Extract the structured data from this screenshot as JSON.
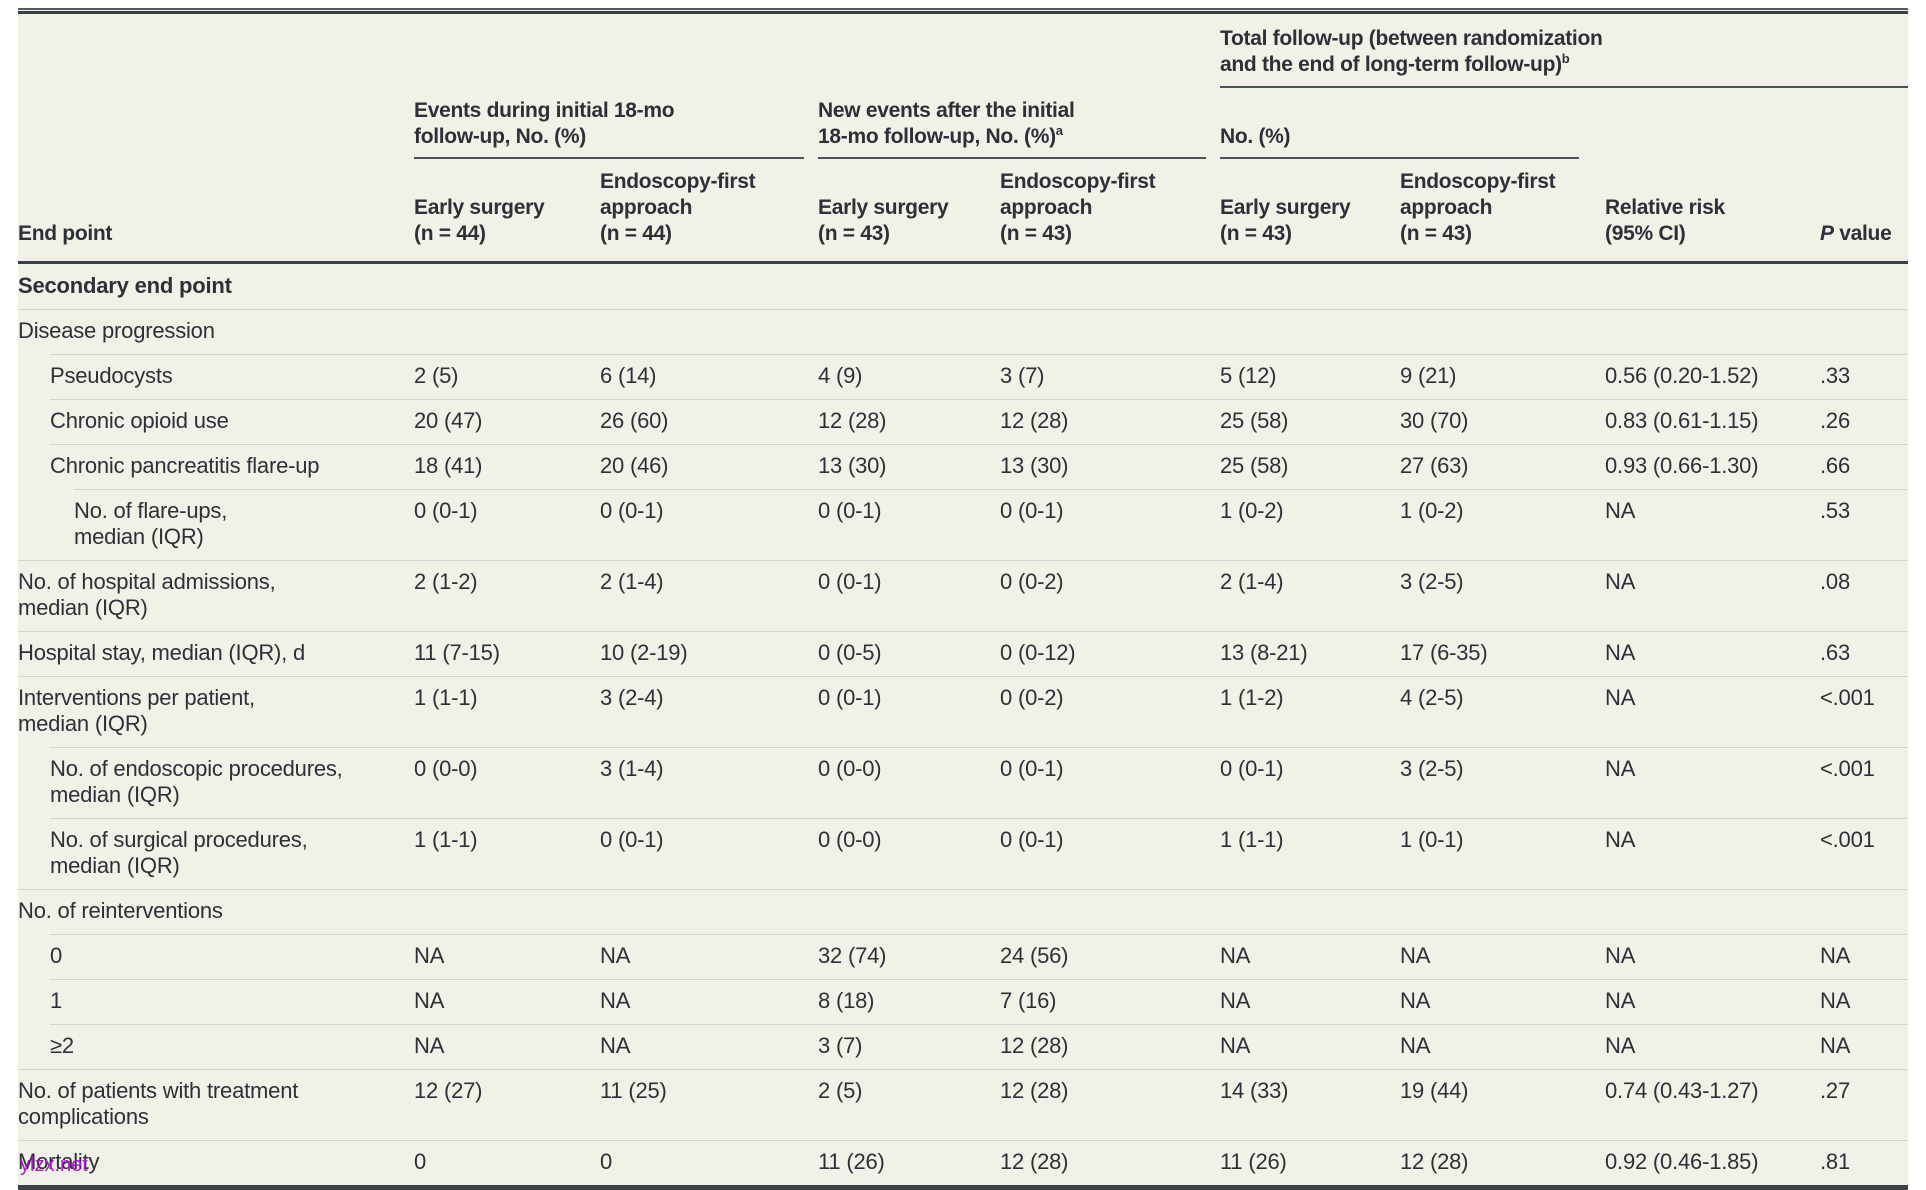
{
  "table": {
    "header": {
      "end_point_label": "End point",
      "group_events": {
        "title": "Events during initial 18-mo\nfollow-up, No. (%)",
        "sup": ""
      },
      "group_new_events": {
        "title": "New events after the initial\n18-mo follow-up, No. (%)",
        "sup": "a"
      },
      "group_total": {
        "title": "Total follow-up (between randomization\nand the end of long-term follow-up)",
        "sup": "b",
        "subtitle": "No. (%)"
      },
      "columns": [
        "Early surgery\n(n = 44)",
        "Endoscopy-first\napproach\n(n = 44)",
        "Early surgery\n(n = 43)",
        "Endoscopy-first\napproach\n(n = 43)",
        "Early surgery\n(n = 43)",
        "Endoscopy-first\napproach\n(n = 43)",
        "Relative risk\n(95% CI)"
      ],
      "p_value": {
        "italic": "P",
        "rest": " value"
      }
    },
    "rows": [
      {
        "label": "Secondary end point",
        "indent": 0,
        "bold": true,
        "sep": "none",
        "cells": [
          "",
          "",
          "",
          "",
          "",
          "",
          "",
          ""
        ]
      },
      {
        "label": "Disease progression",
        "indent": 0,
        "bold": false,
        "sep": "full",
        "cells": [
          "",
          "",
          "",
          "",
          "",
          "",
          "",
          ""
        ]
      },
      {
        "label": "Pseudocysts",
        "indent": 1,
        "bold": false,
        "sep": "inset",
        "cells": [
          "2 (5)",
          "6 (14)",
          "4 (9)",
          "3 (7)",
          "5 (12)",
          "9 (21)",
          "0.56 (0.20-1.52)",
          ".33"
        ]
      },
      {
        "label": "Chronic opioid use",
        "indent": 1,
        "bold": false,
        "sep": "inset",
        "cells": [
          "20 (47)",
          "26 (60)",
          "12 (28)",
          "12 (28)",
          "25 (58)",
          "30 (70)",
          "0.83 (0.61-1.15)",
          ".26"
        ]
      },
      {
        "label": "Chronic pancreatitis flare-up",
        "indent": 1,
        "bold": false,
        "sep": "inset",
        "cells": [
          "18 (41)",
          "20 (46)",
          "13 (30)",
          "13 (30)",
          "25 (58)",
          "27 (63)",
          "0.93 (0.66-1.30)",
          ".66"
        ]
      },
      {
        "label": "No. of flare-ups,\nmedian (IQR)",
        "indent": 2,
        "bold": false,
        "sep": "inset2",
        "cells": [
          "0 (0-1)",
          "0 (0-1)",
          "0 (0-1)",
          "0 (0-1)",
          "1 (0-2)",
          "1 (0-2)",
          "NA",
          ".53"
        ]
      },
      {
        "label": "No. of hospital admissions,\nmedian (IQR)",
        "indent": 0,
        "bold": false,
        "sep": "full",
        "cells": [
          "2 (1-2)",
          "2 (1-4)",
          "0 (0-1)",
          "0 (0-2)",
          "2 (1-4)",
          "3 (2-5)",
          "NA",
          ".08"
        ]
      },
      {
        "label": "Hospital stay, median (IQR), d",
        "indent": 0,
        "bold": false,
        "sep": "full",
        "cells": [
          "11 (7-15)",
          "10 (2-19)",
          "0 (0-5)",
          "0 (0-12)",
          "13 (8-21)",
          "17 (6-35)",
          "NA",
          ".63"
        ]
      },
      {
        "label": "Interventions per patient,\nmedian (IQR)",
        "indent": 0,
        "bold": false,
        "sep": "full",
        "cells": [
          "1 (1-1)",
          "3 (2-4)",
          "0 (0-1)",
          "0 (0-2)",
          "1 (1-2)",
          "4 (2-5)",
          "NA",
          "<.001"
        ]
      },
      {
        "label": "No. of endoscopic procedures,\nmedian (IQR)",
        "indent": 1,
        "bold": false,
        "sep": "inset",
        "cells": [
          "0 (0-0)",
          "3 (1-4)",
          "0 (0-0)",
          "0 (0-1)",
          "0 (0-1)",
          "3 (2-5)",
          "NA",
          "<.001"
        ]
      },
      {
        "label": "No. of surgical procedures,\nmedian (IQR)",
        "indent": 1,
        "bold": false,
        "sep": "inset",
        "cells": [
          "1 (1-1)",
          "0 (0-1)",
          "0 (0-0)",
          "0 (0-1)",
          "1 (1-1)",
          "1 (0-1)",
          "NA",
          "<.001"
        ]
      },
      {
        "label": "No. of reinterventions",
        "indent": 0,
        "bold": false,
        "sep": "full",
        "cells": [
          "",
          "",
          "",
          "",
          "",
          "",
          "",
          ""
        ]
      },
      {
        "label": "0",
        "indent": 1,
        "bold": false,
        "sep": "inset",
        "cells": [
          "NA",
          "NA",
          "32 (74)",
          "24 (56)",
          "NA",
          "NA",
          "NA",
          "NA"
        ]
      },
      {
        "label": "1",
        "indent": 1,
        "bold": false,
        "sep": "inset",
        "cells": [
          "NA",
          "NA",
          "8 (18)",
          "7 (16)",
          "NA",
          "NA",
          "NA",
          "NA"
        ]
      },
      {
        "label": "≥2",
        "indent": 1,
        "bold": false,
        "sep": "inset",
        "cells": [
          "NA",
          "NA",
          "3 (7)",
          "12 (28)",
          "NA",
          "NA",
          "NA",
          "NA"
        ]
      },
      {
        "label": "No. of patients with treatment\ncomplications",
        "indent": 0,
        "bold": false,
        "sep": "full",
        "cells": [
          "12 (27)",
          "11 (25)",
          "2 (5)",
          "12 (28)",
          "14 (33)",
          "19 (44)",
          "0.74 (0.43-1.27)",
          ".27"
        ]
      },
      {
        "label": "Mortality",
        "indent": 0,
        "bold": false,
        "sep": "full",
        "cells": [
          "0",
          "0",
          "11 (26)",
          "12 (28)",
          "11 (26)",
          "12 (28)",
          "0.92 (0.46-1.85)",
          ".81"
        ]
      }
    ]
  },
  "watermark": {
    "text": "ylzx.net"
  },
  "colors": {
    "bg": "#f2f1e7",
    "text": "#2c3038",
    "rule_dark": "#3a4048",
    "rule_mid": "#4b5157",
    "rule_light": "#d6d4c6",
    "wm": "#a81ccc"
  }
}
